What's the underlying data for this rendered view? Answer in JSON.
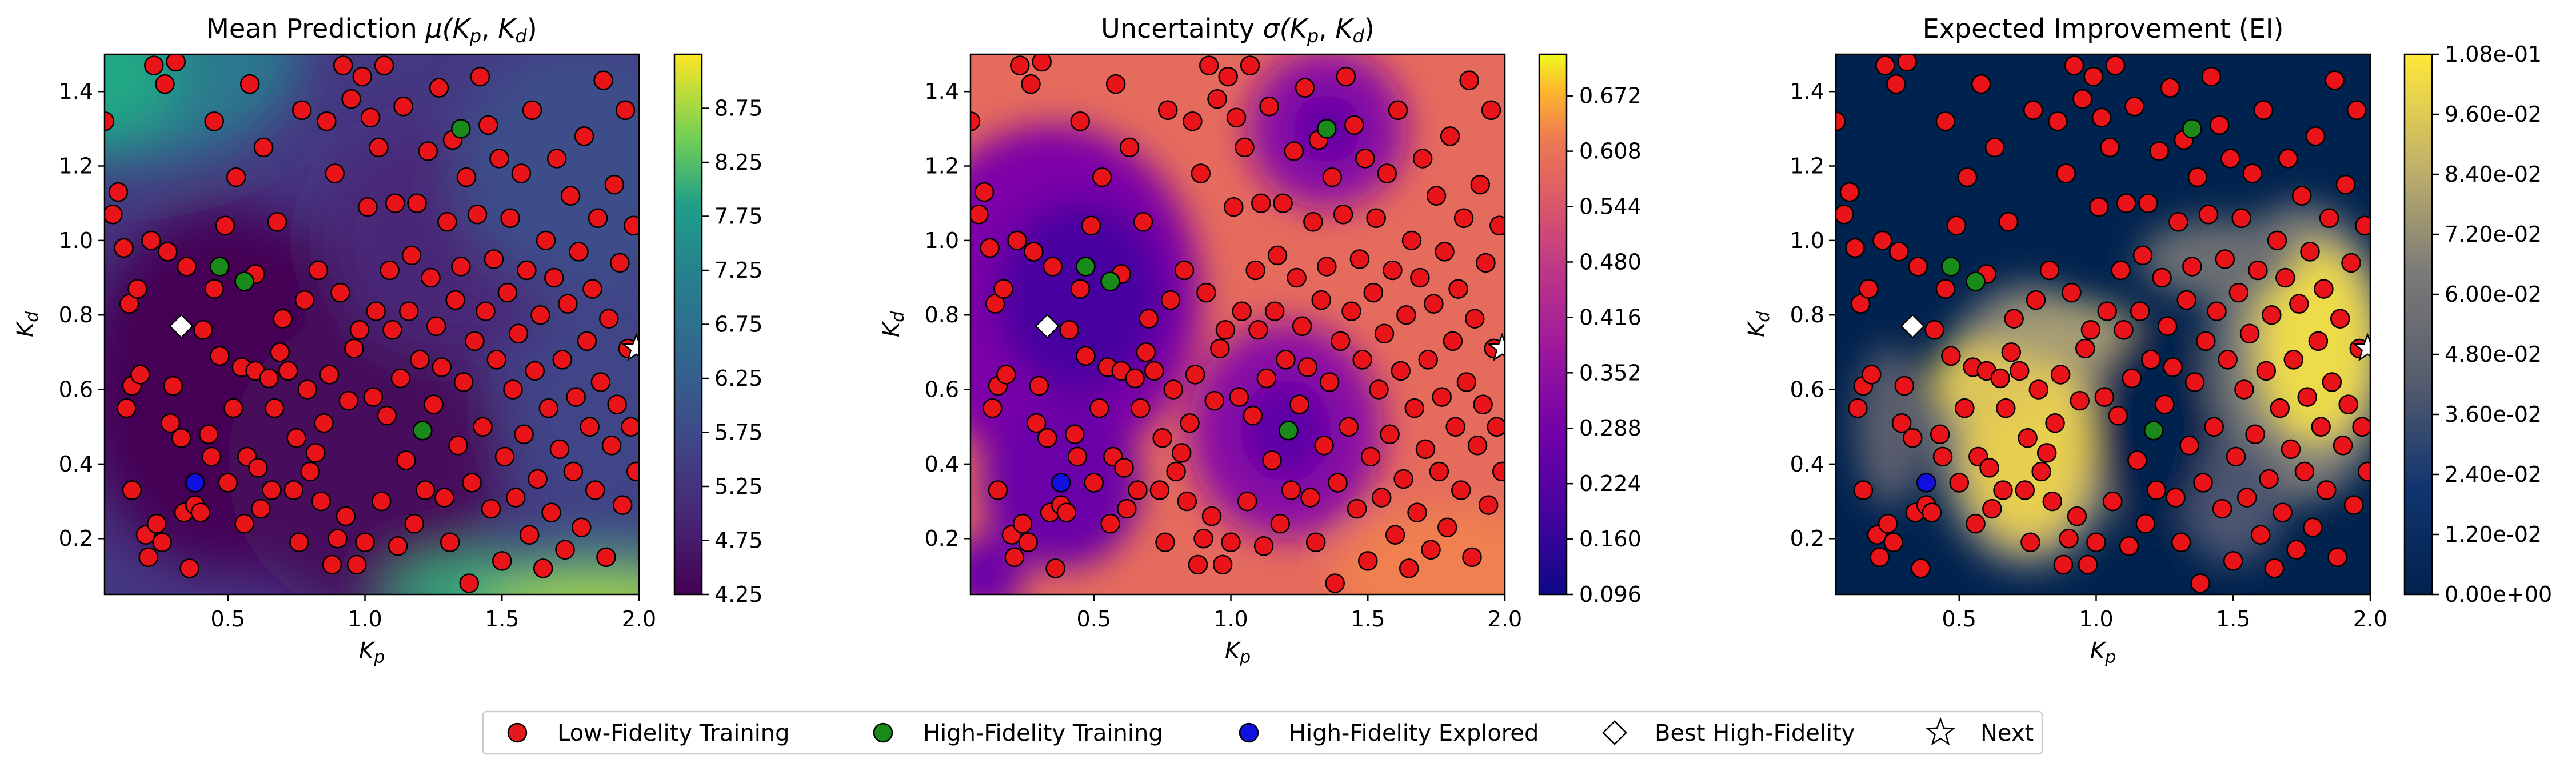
{
  "panels": [
    {
      "title": "Mean Prediction μ(Kp, Kd)",
      "title_parts": [
        "Mean Prediction ",
        "μ(",
        "K",
        "p",
        ", ",
        "K",
        "d",
        ")"
      ],
      "colormap": "viridis",
      "colorbar_ticks": [
        "4.25",
        "4.75",
        "5.25",
        "5.75",
        "6.25",
        "6.75",
        "7.25",
        "7.75",
        "8.25",
        "8.75"
      ],
      "colorbar_range": [
        4.25,
        9.25
      ],
      "field_description": "low values (dark purple) across center, higher values (teal/green) at top-left corner and bottom-right edge"
    },
    {
      "title": "Uncertainty σ(Kp, Kd)",
      "title_parts": [
        "Uncertainty ",
        "σ(",
        "K",
        "p",
        ", ",
        "K",
        "d",
        ")"
      ],
      "colormap": "plasma",
      "colorbar_ticks": [
        "0.096",
        "0.160",
        "0.224",
        "0.288",
        "0.352",
        "0.416",
        "0.480",
        "0.544",
        "0.608",
        "0.672"
      ],
      "colorbar_range": [
        0.096,
        0.72
      ],
      "field_description": "high (orange) everywhere, low (purple) wells around high-fidelity points"
    },
    {
      "title": "Expected Improvement (EI)",
      "colormap": "cividis",
      "colorbar_ticks": [
        "0.00e+00",
        "1.20e-02",
        "2.40e-02",
        "3.60e-02",
        "4.80e-02",
        "6.00e-02",
        "7.20e-02",
        "8.40e-02",
        "9.60e-02",
        "1.08e-01"
      ],
      "colorbar_range": [
        0,
        0.108
      ],
      "field_description": "dark navy mostly, bright yellow bands near Kp≈0.7-0.9 and Kp≈1.7-1.9"
    }
  ],
  "axes": {
    "xlabel_main": "K",
    "xlabel_sub": "p",
    "ylabel_main": "K",
    "ylabel_sub": "d",
    "xlim": [
      0.05,
      2.0
    ],
    "ylim": [
      0.05,
      1.5
    ],
    "xticks": [
      "0.5",
      "1.0",
      "1.5",
      "2.0"
    ],
    "yticks": [
      "0.2",
      "0.4",
      "0.6",
      "0.8",
      "1.0",
      "1.2",
      "1.4"
    ]
  },
  "legend": [
    {
      "label": "Low-Fidelity Training",
      "marker": "circle",
      "color": "#e31a1c"
    },
    {
      "label": "High-Fidelity Training",
      "marker": "circle",
      "color": "#1a8a1a"
    },
    {
      "label": "High-Fidelity Explored",
      "marker": "circle",
      "color": "#1010e0"
    },
    {
      "label": "Best High-Fidelity",
      "marker": "diamond",
      "color": "#ffffff"
    },
    {
      "label": "Next",
      "marker": "star",
      "color": "#ffffff"
    }
  ],
  "chart_data": {
    "type": "heatmap",
    "subplots": 3,
    "series": [
      {
        "name": "Low-Fidelity Training",
        "points": [
          [
            0.05,
            1.32
          ],
          [
            0.08,
            1.07
          ],
          [
            0.1,
            1.13
          ],
          [
            0.12,
            0.98
          ],
          [
            0.13,
            0.55
          ],
          [
            0.14,
            0.83
          ],
          [
            0.15,
            0.61
          ],
          [
            0.15,
            0.33
          ],
          [
            0.17,
            0.87
          ],
          [
            0.18,
            0.64
          ],
          [
            0.2,
            0.21
          ],
          [
            0.21,
            0.15
          ],
          [
            0.22,
            1.0
          ],
          [
            0.23,
            1.47
          ],
          [
            0.24,
            0.24
          ],
          [
            0.26,
            0.19
          ],
          [
            0.27,
            1.42
          ],
          [
            0.28,
            0.97
          ],
          [
            0.29,
            0.51
          ],
          [
            0.3,
            0.61
          ],
          [
            0.31,
            1.48
          ],
          [
            0.33,
            0.47
          ],
          [
            0.34,
            0.27
          ],
          [
            0.35,
            0.93
          ],
          [
            0.36,
            0.12
          ],
          [
            0.38,
            0.29
          ],
          [
            0.4,
            0.27
          ],
          [
            0.41,
            0.76
          ],
          [
            0.43,
            0.48
          ],
          [
            0.44,
            0.42
          ],
          [
            0.45,
            0.87
          ],
          [
            0.45,
            1.32
          ],
          [
            0.47,
            0.69
          ],
          [
            0.49,
            1.04
          ],
          [
            0.5,
            0.35
          ],
          [
            0.52,
            0.55
          ],
          [
            0.53,
            1.17
          ],
          [
            0.55,
            0.66
          ],
          [
            0.56,
            0.24
          ],
          [
            0.57,
            0.42
          ],
          [
            0.58,
            1.42
          ],
          [
            0.6,
            0.65
          ],
          [
            0.6,
            0.91
          ],
          [
            0.61,
            0.39
          ],
          [
            0.62,
            0.28
          ],
          [
            0.63,
            1.25
          ],
          [
            0.65,
            0.63
          ],
          [
            0.66,
            0.33
          ],
          [
            0.67,
            0.55
          ],
          [
            0.68,
            1.05
          ],
          [
            0.69,
            0.7
          ],
          [
            0.7,
            0.79
          ],
          [
            0.72,
            0.65
          ],
          [
            0.74,
            0.33
          ],
          [
            0.75,
            0.47
          ],
          [
            0.76,
            0.19
          ],
          [
            0.77,
            1.35
          ],
          [
            0.78,
            0.84
          ],
          [
            0.79,
            0.6
          ],
          [
            0.8,
            0.38
          ],
          [
            0.82,
            0.43
          ],
          [
            0.83,
            0.92
          ],
          [
            0.84,
            0.3
          ],
          [
            0.85,
            0.51
          ],
          [
            0.86,
            1.32
          ],
          [
            0.87,
            0.64
          ],
          [
            0.88,
            0.13
          ],
          [
            0.89,
            1.18
          ],
          [
            0.9,
            0.2
          ],
          [
            0.91,
            0.86
          ],
          [
            0.92,
            1.47
          ],
          [
            0.93,
            0.26
          ],
          [
            0.94,
            0.57
          ],
          [
            0.95,
            1.38
          ],
          [
            0.96,
            0.71
          ],
          [
            0.97,
            0.13
          ],
          [
            0.98,
            0.76
          ],
          [
            0.99,
            1.44
          ],
          [
            1.0,
            0.19
          ],
          [
            1.01,
            1.09
          ],
          [
            1.02,
            1.33
          ],
          [
            1.03,
            0.58
          ],
          [
            1.04,
            0.81
          ],
          [
            1.05,
            1.25
          ],
          [
            1.06,
            0.3
          ],
          [
            1.07,
            1.47
          ],
          [
            1.08,
            0.53
          ],
          [
            1.09,
            0.92
          ],
          [
            1.1,
            0.76
          ],
          [
            1.11,
            1.1
          ],
          [
            1.12,
            0.18
          ],
          [
            1.13,
            0.63
          ],
          [
            1.14,
            1.36
          ],
          [
            1.15,
            0.41
          ],
          [
            1.16,
            0.81
          ],
          [
            1.17,
            0.96
          ],
          [
            1.18,
            0.24
          ],
          [
            1.19,
            1.1
          ],
          [
            1.2,
            0.68
          ],
          [
            1.21,
            0.49
          ],
          [
            1.22,
            0.33
          ],
          [
            1.23,
            1.24
          ],
          [
            1.24,
            0.9
          ],
          [
            1.25,
            0.56
          ],
          [
            1.26,
            0.77
          ],
          [
            1.27,
            1.41
          ],
          [
            1.28,
            0.66
          ],
          [
            1.29,
            0.31
          ],
          [
            1.3,
            1.05
          ],
          [
            1.31,
            0.19
          ],
          [
            1.32,
            1.27
          ],
          [
            1.33,
            0.84
          ],
          [
            1.34,
            0.45
          ],
          [
            1.35,
            0.93
          ],
          [
            1.36,
            0.62
          ],
          [
            1.37,
            1.17
          ],
          [
            1.38,
            0.08
          ],
          [
            1.39,
            0.35
          ],
          [
            1.4,
            0.73
          ],
          [
            1.41,
            1.07
          ],
          [
            1.42,
            1.44
          ],
          [
            1.43,
            0.5
          ],
          [
            1.44,
            0.81
          ],
          [
            1.45,
            1.31
          ],
          [
            1.46,
            0.28
          ],
          [
            1.47,
            0.95
          ],
          [
            1.48,
            0.68
          ],
          [
            1.49,
            1.22
          ],
          [
            1.5,
            0.14
          ],
          [
            1.51,
            0.42
          ],
          [
            1.52,
            0.86
          ],
          [
            1.53,
            1.06
          ],
          [
            1.54,
            0.6
          ],
          [
            1.55,
            0.31
          ],
          [
            1.56,
            0.75
          ],
          [
            1.57,
            1.18
          ],
          [
            1.58,
            0.48
          ],
          [
            1.59,
            0.92
          ],
          [
            1.6,
            0.21
          ],
          [
            1.61,
            1.35
          ],
          [
            1.62,
            0.65
          ],
          [
            1.63,
            0.36
          ],
          [
            1.64,
            0.8
          ],
          [
            1.65,
            0.12
          ],
          [
            1.66,
            1.0
          ],
          [
            1.67,
            0.55
          ],
          [
            1.68,
            0.27
          ],
          [
            1.69,
            0.9
          ],
          [
            1.7,
            1.22
          ],
          [
            1.71,
            0.44
          ],
          [
            1.72,
            0.68
          ],
          [
            1.73,
            0.17
          ],
          [
            1.74,
            0.83
          ],
          [
            1.75,
            1.12
          ],
          [
            1.76,
            0.38
          ],
          [
            1.77,
            0.58
          ],
          [
            1.78,
            0.97
          ],
          [
            1.79,
            0.23
          ],
          [
            1.8,
            1.28
          ],
          [
            1.81,
            0.73
          ],
          [
            1.82,
            0.5
          ],
          [
            1.83,
            0.87
          ],
          [
            1.84,
            0.33
          ],
          [
            1.85,
            1.06
          ],
          [
            1.86,
            0.62
          ],
          [
            1.87,
            1.43
          ],
          [
            1.88,
            0.15
          ],
          [
            1.89,
            0.79
          ],
          [
            1.9,
            0.45
          ],
          [
            1.91,
            1.15
          ],
          [
            1.92,
            0.56
          ],
          [
            1.93,
            0.94
          ],
          [
            1.94,
            0.29
          ],
          [
            1.95,
            1.35
          ],
          [
            1.96,
            0.71
          ],
          [
            1.97,
            0.5
          ],
          [
            1.98,
            1.04
          ],
          [
            1.99,
            0.38
          ]
        ]
      },
      {
        "name": "High-Fidelity Training",
        "points": [
          [
            0.47,
            0.93
          ],
          [
            0.56,
            0.89
          ],
          [
            1.21,
            0.49
          ],
          [
            1.35,
            1.3
          ]
        ]
      },
      {
        "name": "High-Fidelity Explored",
        "points": [
          [
            0.38,
            0.35
          ]
        ]
      },
      {
        "name": "Best High-Fidelity",
        "points": [
          [
            0.33,
            0.77
          ]
        ]
      },
      {
        "name": "Next",
        "points": [
          [
            1.99,
            0.71
          ]
        ]
      }
    ],
    "xlim": [
      0.05,
      2.0
    ],
    "ylim": [
      0.05,
      1.5
    ],
    "grid": false,
    "legend_placement": "bottom-center"
  }
}
